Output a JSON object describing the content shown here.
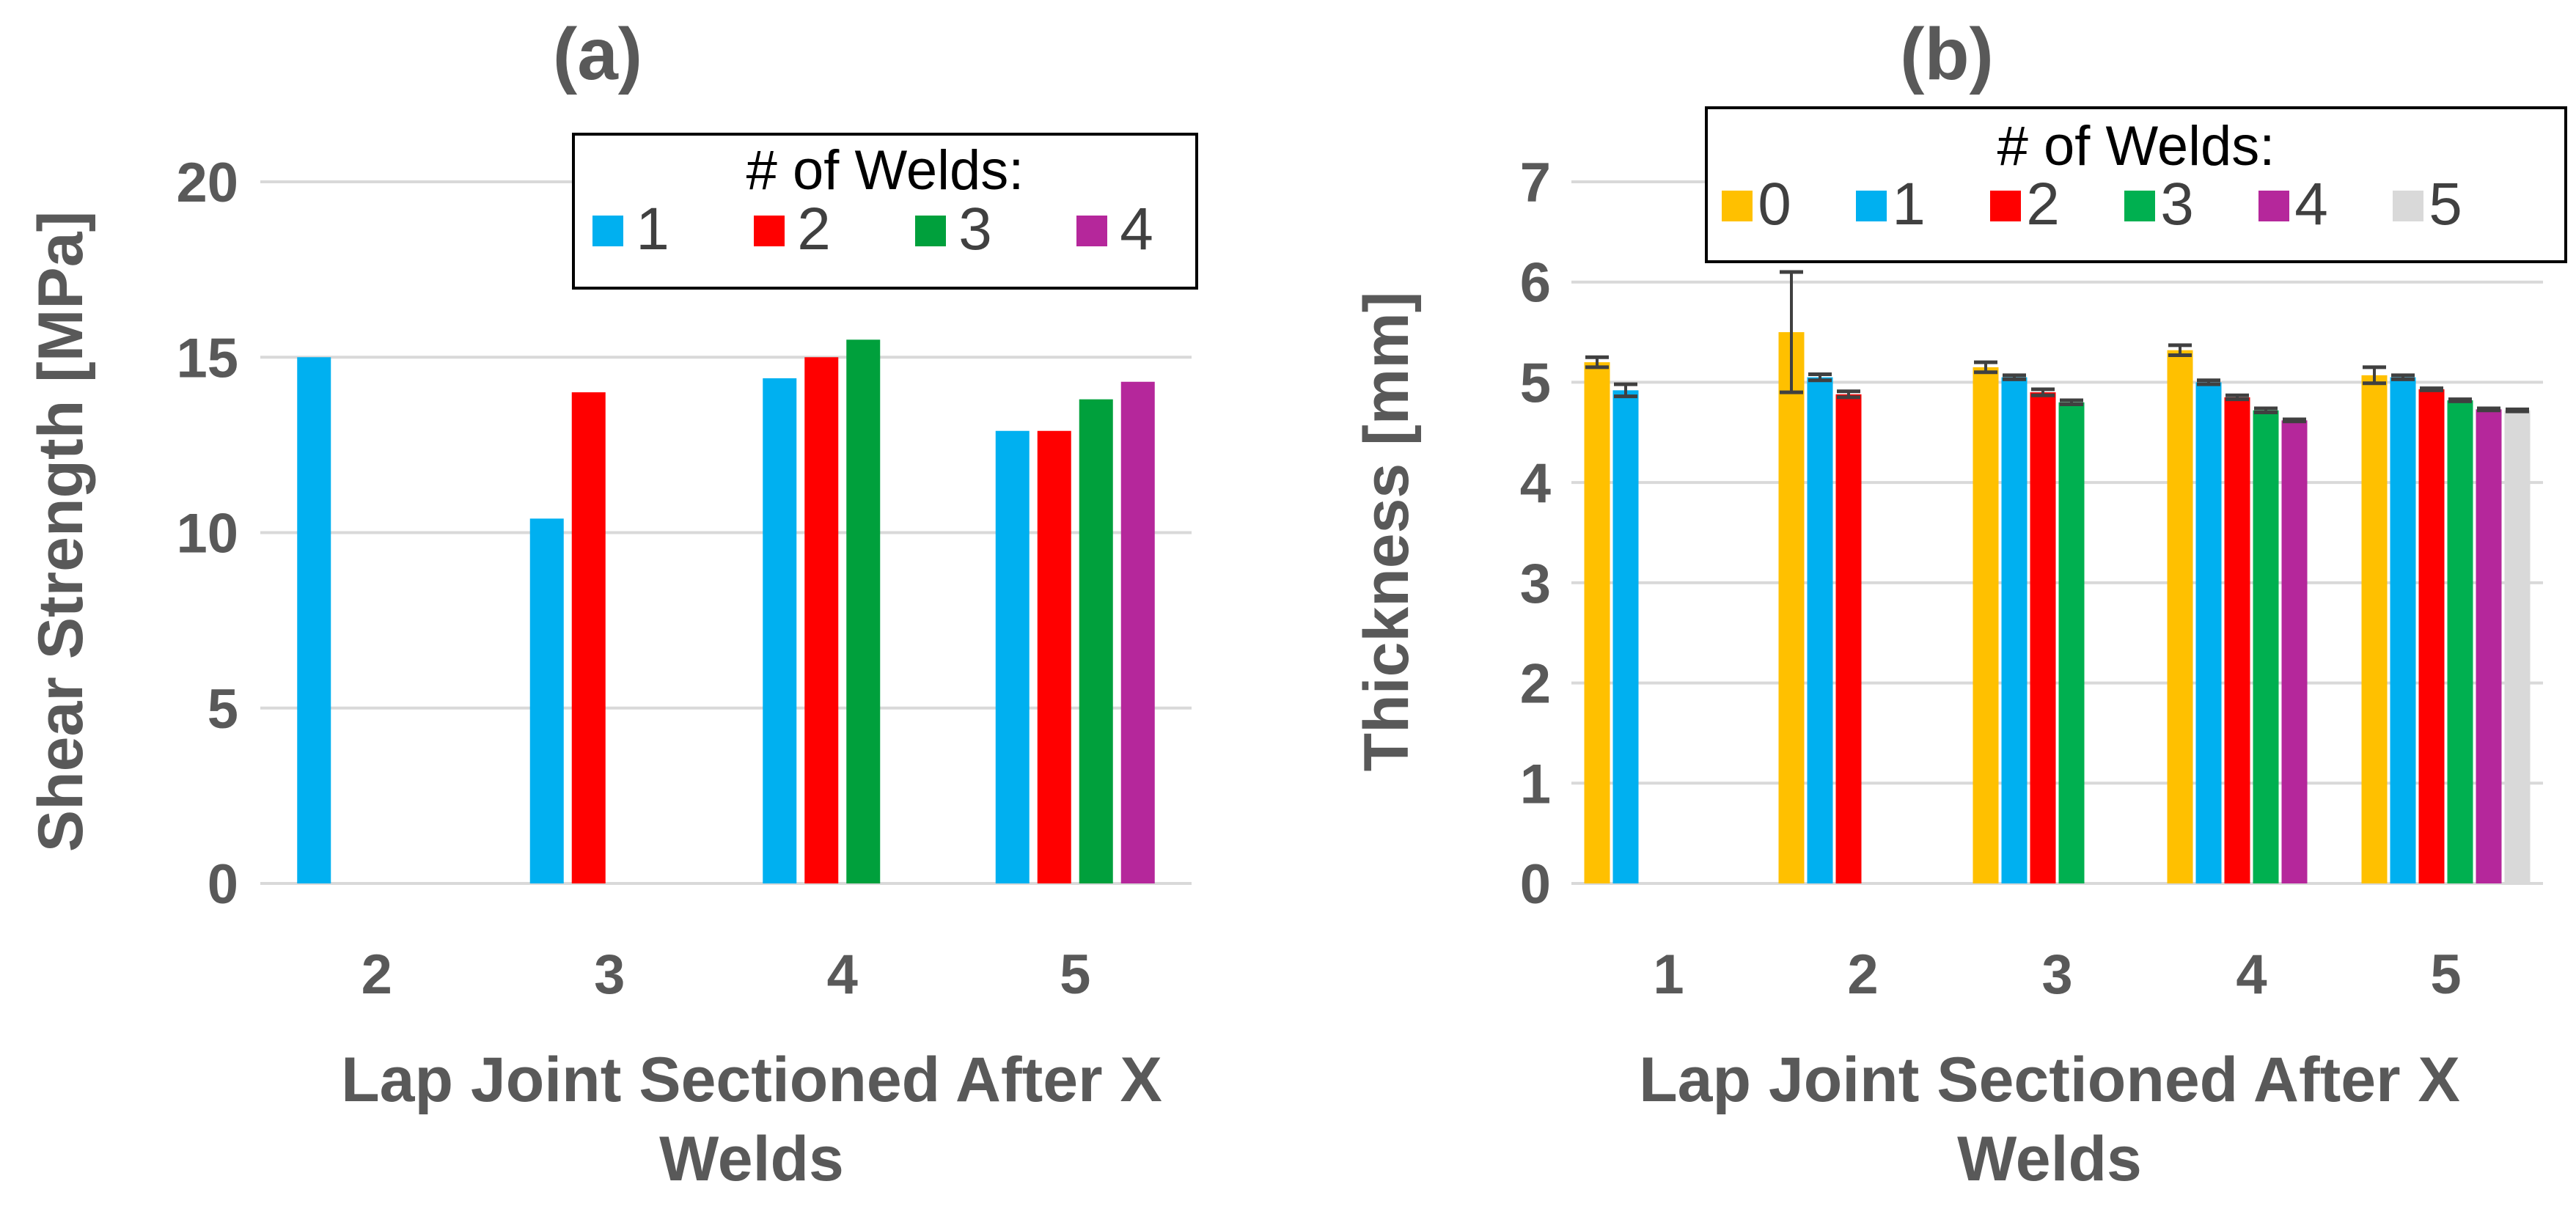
{
  "chart_data": [
    {
      "type": "bar",
      "panel_label": "(a)",
      "title": "",
      "xlabel_lines": [
        "Lap Joint Sectioned After X",
        "Welds"
      ],
      "ylabel": "Shear Strength [MPa]",
      "ylim": [
        0,
        20
      ],
      "yticks": [
        "0",
        "5",
        "10",
        "15",
        "20"
      ],
      "grid": true,
      "legend_title": "# of Welds:",
      "legend_position": "top-right",
      "categories": [
        "2",
        "3",
        "4",
        "5"
      ],
      "series": [
        {
          "name": "1",
          "color": "#00B0F0",
          "values": [
            15.0,
            10.4,
            14.4,
            12.9
          ]
        },
        {
          "name": "2",
          "color": "#FF0000",
          "values": [
            null,
            14.0,
            15.0,
            12.9
          ]
        },
        {
          "name": "3",
          "color": "#00A03C",
          "values": [
            null,
            null,
            15.5,
            13.8
          ]
        },
        {
          "name": "4",
          "color": "#B5279B",
          "values": [
            null,
            null,
            null,
            14.3
          ]
        }
      ]
    },
    {
      "type": "bar",
      "panel_label": "(b)",
      "title": "",
      "xlabel_lines": [
        "Lap Joint Sectioned After X",
        "Welds"
      ],
      "ylabel": "Thickness [mm]",
      "ylim": [
        0,
        7
      ],
      "yticks": [
        "0",
        "1",
        "2",
        "3",
        "4",
        "5",
        "6",
        "7"
      ],
      "grid": true,
      "legend_title": "# of Welds:",
      "legend_position": "top",
      "categories": [
        "1",
        "2",
        "3",
        "4",
        "5"
      ],
      "series": [
        {
          "name": "0",
          "color": "#FFC000",
          "values": [
            5.2,
            5.5,
            5.15,
            5.32,
            5.07
          ],
          "errors": [
            0.05,
            0.6,
            0.05,
            0.05,
            0.08
          ]
        },
        {
          "name": "1",
          "color": "#00B0F0",
          "values": [
            4.92,
            5.05,
            5.05,
            5.0,
            5.05
          ],
          "errors": [
            0.06,
            0.03,
            0.02,
            0.02,
            0.02
          ]
        },
        {
          "name": "2",
          "color": "#FF0000",
          "values": [
            null,
            4.88,
            4.9,
            4.85,
            4.93
          ],
          "errors": [
            null,
            0.03,
            0.03,
            0.02,
            0.01
          ]
        },
        {
          "name": "3",
          "color": "#00B050",
          "values": [
            null,
            null,
            4.8,
            4.72,
            4.82
          ],
          "errors": [
            null,
            null,
            0.02,
            0.02,
            0.01
          ]
        },
        {
          "name": "4",
          "color": "#B5279B",
          "values": [
            null,
            null,
            null,
            4.62,
            4.73
          ],
          "errors": [
            null,
            null,
            null,
            0.01,
            0.01
          ]
        },
        {
          "name": "5",
          "color": "#D9D9D9",
          "values": [
            null,
            null,
            null,
            null,
            4.72
          ],
          "errors": [
            null,
            null,
            null,
            null,
            0.01
          ]
        }
      ]
    }
  ]
}
